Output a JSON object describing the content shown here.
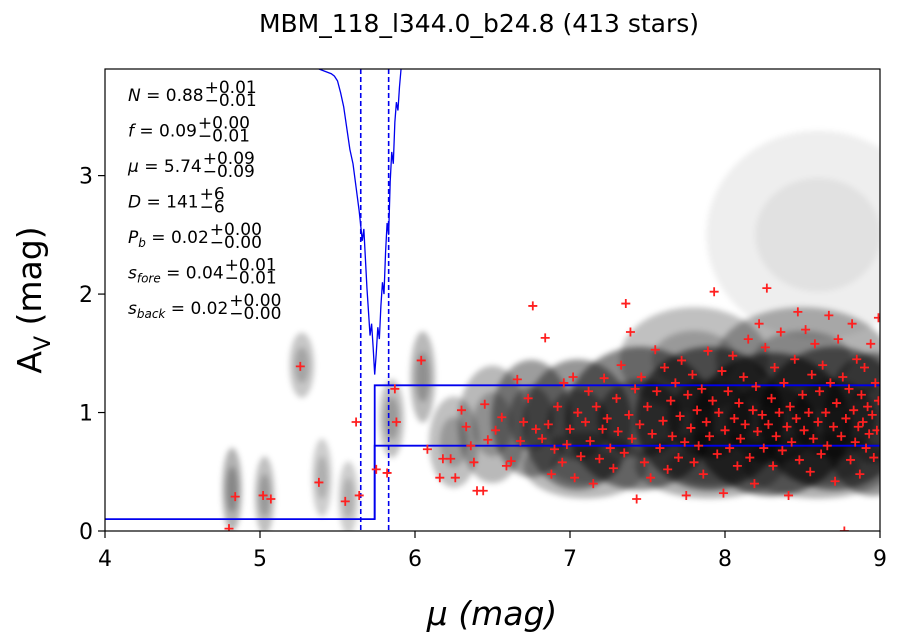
{
  "chart_data": {
    "type": "scatter",
    "title": "MBM_118_l344.0_b24.8 (413 stars)",
    "xlabel": "μ (mag)",
    "ylabel": "A",
    "ylabel_sub": "V",
    "ylabel_unit": " (mag)",
    "xlim": [
      4,
      9
    ],
    "ylim": [
      0,
      3.9
    ],
    "xticks": [
      "4",
      "5",
      "6",
      "7",
      "8",
      "9"
    ],
    "yticks": [
      "0",
      "1",
      "2",
      "3"
    ],
    "annotations": [
      {
        "sym": "N",
        "sub": "",
        "value": " = 0.88",
        "plus": "+0.01",
        "minus": "−0.01"
      },
      {
        "sym": "f",
        "sub": "",
        "value": " = 0.09",
        "plus": "+0.00",
        "minus": "−0.01"
      },
      {
        "sym": "μ",
        "sub": "",
        "value": " = 5.74",
        "plus": "+0.09",
        "minus": "−0.09"
      },
      {
        "sym": "D",
        "sub": "",
        "value": " = 141",
        "plus": "+6",
        "minus": "−6"
      },
      {
        "sym": "P",
        "sub": "b",
        "value": " = 0.02",
        "plus": "+0.00",
        "minus": "−0.00"
      },
      {
        "sym": "s",
        "sub": "fore",
        "value": " = 0.04",
        "plus": "+0.01",
        "minus": "−0.01"
      },
      {
        "sym": "s",
        "sub": "back",
        "value": " = 0.02",
        "plus": "+0.00",
        "minus": "−0.00"
      }
    ],
    "colors": {
      "points": "#ff2020",
      "model": "#0000ee",
      "density": "#000000"
    },
    "model_step": {
      "x_break": 5.74,
      "fore_level": 0.1,
      "back_upper": 1.23,
      "back_lower": 0.72
    },
    "distance_lines": [
      5.65,
      5.83
    ],
    "likelihood_curve": [
      [
        5.38,
        3.9
      ],
      [
        5.42,
        3.88
      ],
      [
        5.46,
        3.86
      ],
      [
        5.48,
        3.84
      ],
      [
        5.5,
        3.8
      ],
      [
        5.52,
        3.7
      ],
      [
        5.54,
        3.58
      ],
      [
        5.56,
        3.4
      ],
      [
        5.58,
        3.22
      ],
      [
        5.6,
        3.1
      ],
      [
        5.62,
        2.9
      ],
      [
        5.64,
        2.7
      ],
      [
        5.66,
        2.45
      ],
      [
        5.67,
        2.55
      ],
      [
        5.68,
        2.3
      ],
      [
        5.69,
        2.05
      ],
      [
        5.7,
        1.85
      ],
      [
        5.71,
        1.65
      ],
      [
        5.72,
        1.75
      ],
      [
        5.73,
        1.55
      ],
      [
        5.74,
        1.32
      ],
      [
        5.75,
        1.5
      ],
      [
        5.76,
        1.72
      ],
      [
        5.77,
        1.62
      ],
      [
        5.78,
        1.9
      ],
      [
        5.79,
        2.1
      ],
      [
        5.8,
        2.0
      ],
      [
        5.81,
        2.35
      ],
      [
        5.82,
        2.6
      ],
      [
        5.83,
        2.5
      ],
      [
        5.84,
        2.95
      ],
      [
        5.85,
        3.2
      ],
      [
        5.86,
        3.1
      ],
      [
        5.87,
        3.45
      ],
      [
        5.88,
        3.62
      ],
      [
        5.89,
        3.55
      ],
      [
        5.9,
        3.75
      ],
      [
        5.91,
        3.9
      ]
    ],
    "density_blobs": [
      [
        4.82,
        0.35,
        0.04,
        0.32,
        0.55
      ],
      [
        5.03,
        0.3,
        0.04,
        0.3,
        0.45
      ],
      [
        5.27,
        1.4,
        0.05,
        0.25,
        0.4
      ],
      [
        5.4,
        0.45,
        0.04,
        0.3,
        0.35
      ],
      [
        5.57,
        0.28,
        0.04,
        0.28,
        0.35
      ],
      [
        5.85,
        0.95,
        0.05,
        0.3,
        0.45
      ],
      [
        6.05,
        1.3,
        0.05,
        0.35,
        0.5
      ],
      [
        6.25,
        0.75,
        0.1,
        0.35,
        0.45
      ],
      [
        6.5,
        0.9,
        0.14,
        0.45,
        0.5
      ],
      [
        6.75,
        0.95,
        0.16,
        0.45,
        0.7
      ],
      [
        7.05,
        0.9,
        0.22,
        0.5,
        0.75
      ],
      [
        7.45,
        0.95,
        0.3,
        0.55,
        0.85
      ],
      [
        7.9,
        0.95,
        0.3,
        0.55,
        0.95
      ],
      [
        8.3,
        0.9,
        0.32,
        0.55,
        1.0
      ],
      [
        8.7,
        0.95,
        0.3,
        0.55,
        0.9
      ],
      [
        8.95,
        0.9,
        0.2,
        0.55,
        0.75
      ],
      [
        8.5,
        1.45,
        0.35,
        0.4,
        0.55
      ],
      [
        7.8,
        1.45,
        0.3,
        0.4,
        0.45
      ],
      [
        7.1,
        0.55,
        0.25,
        0.25,
        0.5
      ],
      [
        7.9,
        0.55,
        0.3,
        0.25,
        0.55
      ],
      [
        8.6,
        0.55,
        0.3,
        0.25,
        0.55
      ],
      [
        8.6,
        2.5,
        0.45,
        0.8,
        0.12
      ]
    ],
    "points": [
      [
        4.8,
        0.02
      ],
      [
        4.84,
        0.29
      ],
      [
        5.02,
        0.3
      ],
      [
        5.07,
        0.27
      ],
      [
        5.26,
        1.39
      ],
      [
        5.38,
        0.41
      ],
      [
        5.55,
        0.25
      ],
      [
        5.62,
        0.92
      ],
      [
        5.64,
        0.3
      ],
      [
        5.75,
        0.52
      ],
      [
        5.82,
        0.49
      ],
      [
        5.87,
        1.2
      ],
      [
        5.88,
        0.92
      ],
      [
        6.04,
        1.44
      ],
      [
        6.08,
        0.69
      ],
      [
        6.16,
        0.45
      ],
      [
        6.18,
        0.61
      ],
      [
        6.23,
        0.61
      ],
      [
        6.26,
        0.45
      ],
      [
        6.3,
        1.02
      ],
      [
        6.33,
        0.88
      ],
      [
        6.36,
        0.72
      ],
      [
        6.38,
        0.58
      ],
      [
        6.4,
        0.34
      ],
      [
        6.44,
        0.34
      ],
      [
        6.45,
        1.07
      ],
      [
        6.47,
        0.77
      ],
      [
        6.52,
        0.85
      ],
      [
        6.56,
        0.96
      ],
      [
        6.59,
        0.55
      ],
      [
        6.62,
        0.59
      ],
      [
        6.66,
        1.28
      ],
      [
        6.68,
        0.76
      ],
      [
        6.7,
        0.92
      ],
      [
        6.73,
        1.12
      ],
      [
        6.76,
        1.9
      ],
      [
        6.78,
        0.86
      ],
      [
        6.82,
        0.78
      ],
      [
        6.84,
        1.63
      ],
      [
        6.86,
        0.9
      ],
      [
        6.88,
        0.48
      ],
      [
        6.9,
        0.69
      ],
      [
        6.92,
        1.05
      ],
      [
        6.95,
        0.58
      ],
      [
        6.96,
        1.25
      ],
      [
        6.98,
        0.73
      ],
      [
        7.0,
        0.86
      ],
      [
        7.02,
        1.3
      ],
      [
        7.03,
        0.45
      ],
      [
        7.05,
        1.0
      ],
      [
        7.07,
        0.63
      ],
      [
        7.1,
        0.92
      ],
      [
        7.12,
        1.18
      ],
      [
        7.13,
        0.76
      ],
      [
        7.15,
        0.4
      ],
      [
        7.17,
        1.05
      ],
      [
        7.19,
        0.61
      ],
      [
        7.21,
        0.86
      ],
      [
        7.22,
        1.29
      ],
      [
        7.24,
        0.95
      ],
      [
        7.26,
        0.7
      ],
      [
        7.28,
        0.53
      ],
      [
        7.3,
        1.12
      ],
      [
        7.31,
        0.84
      ],
      [
        7.33,
        1.4
      ],
      [
        7.35,
        0.66
      ],
      [
        7.36,
        1.92
      ],
      [
        7.38,
        0.98
      ],
      [
        7.39,
        1.68
      ],
      [
        7.4,
        0.78
      ],
      [
        7.42,
        1.2
      ],
      [
        7.43,
        0.27
      ],
      [
        7.45,
        0.9
      ],
      [
        7.46,
        1.3
      ],
      [
        7.48,
        0.58
      ],
      [
        7.5,
        1.05
      ],
      [
        7.52,
        0.45
      ],
      [
        7.53,
        0.82
      ],
      [
        7.55,
        1.53
      ],
      [
        7.56,
        1.18
      ],
      [
        7.58,
        0.7
      ],
      [
        7.6,
        0.93
      ],
      [
        7.61,
        1.38
      ],
      [
        7.63,
        0.52
      ],
      [
        7.65,
        1.1
      ],
      [
        7.66,
        0.8
      ],
      [
        7.68,
        1.25
      ],
      [
        7.7,
        0.62
      ],
      [
        7.71,
        0.97
      ],
      [
        7.72,
        1.44
      ],
      [
        7.74,
        0.75
      ],
      [
        7.75,
        0.3
      ],
      [
        7.76,
        1.15
      ],
      [
        7.78,
        0.87
      ],
      [
        7.79,
        1.32
      ],
      [
        7.8,
        0.58
      ],
      [
        7.82,
        1.02
      ],
      [
        7.83,
        0.72
      ],
      [
        7.85,
        1.2
      ],
      [
        7.86,
        0.48
      ],
      [
        7.88,
        0.92
      ],
      [
        7.89,
        1.52
      ],
      [
        7.9,
        0.8
      ],
      [
        7.92,
        1.1
      ],
      [
        7.93,
        2.02
      ],
      [
        7.95,
        0.65
      ],
      [
        7.96,
        1.0
      ],
      [
        7.98,
        1.35
      ],
      [
        7.99,
        0.32
      ],
      [
        8.0,
        0.85
      ],
      [
        8.02,
        1.18
      ],
      [
        8.03,
        0.7
      ],
      [
        8.05,
        1.48
      ],
      [
        8.06,
        0.95
      ],
      [
        8.08,
        0.55
      ],
      [
        8.09,
        1.08
      ],
      [
        8.1,
        0.78
      ],
      [
        8.12,
        1.3
      ],
      [
        8.13,
        0.9
      ],
      [
        8.15,
        1.62
      ],
      [
        8.16,
        0.62
      ],
      [
        8.18,
        1.02
      ],
      [
        8.19,
        0.4
      ],
      [
        8.2,
        1.22
      ],
      [
        8.21,
        0.84
      ],
      [
        8.22,
        1.75
      ],
      [
        8.24,
        0.98
      ],
      [
        8.25,
        0.7
      ],
      [
        8.26,
        1.55
      ],
      [
        8.27,
        2.05
      ],
      [
        8.28,
        0.9
      ],
      [
        8.3,
        1.12
      ],
      [
        8.31,
        0.55
      ],
      [
        8.32,
        1.38
      ],
      [
        8.33,
        0.8
      ],
      [
        8.35,
        1.0
      ],
      [
        8.36,
        1.68
      ],
      [
        8.37,
        0.68
      ],
      [
        8.38,
        1.25
      ],
      [
        8.4,
        0.88
      ],
      [
        8.41,
        0.3
      ],
      [
        8.42,
        1.05
      ],
      [
        8.43,
        0.75
      ],
      [
        8.45,
        1.45
      ],
      [
        8.46,
        0.95
      ],
      [
        8.47,
        1.85
      ],
      [
        8.48,
        0.6
      ],
      [
        8.5,
        1.15
      ],
      [
        8.51,
        0.85
      ],
      [
        8.52,
        1.7
      ],
      [
        8.54,
        1.0
      ],
      [
        8.55,
        0.5
      ],
      [
        8.56,
        1.32
      ],
      [
        8.57,
        0.78
      ],
      [
        8.58,
        1.58
      ],
      [
        8.6,
        0.92
      ],
      [
        8.61,
        1.18
      ],
      [
        8.62,
        0.65
      ],
      [
        8.63,
        1.4
      ],
      [
        8.65,
        1.0
      ],
      [
        8.66,
        0.72
      ],
      [
        8.67,
        1.82
      ],
      [
        8.68,
        1.25
      ],
      [
        8.7,
        0.88
      ],
      [
        8.71,
        0.42
      ],
      [
        8.72,
        1.08
      ],
      [
        8.73,
        1.62
      ],
      [
        8.75,
        0.8
      ],
      [
        8.76,
        1.3
      ],
      [
        8.77,
        0.0
      ],
      [
        8.78,
        0.95
      ],
      [
        8.8,
        1.2
      ],
      [
        8.81,
        0.6
      ],
      [
        8.82,
        1.75
      ],
      [
        8.83,
        1.02
      ],
      [
        8.84,
        0.75
      ],
      [
        8.85,
        1.45
      ],
      [
        8.86,
        0.88
      ],
      [
        8.87,
        0.48
      ],
      [
        8.88,
        1.15
      ],
      [
        8.89,
        0.92
      ],
      [
        8.9,
        1.38
      ],
      [
        8.91,
        0.7
      ],
      [
        8.92,
        1.05
      ],
      [
        8.93,
        0.82
      ],
      [
        8.94,
        1.58
      ],
      [
        8.95,
        0.98
      ],
      [
        8.96,
        0.62
      ],
      [
        8.97,
        1.25
      ],
      [
        8.98,
        0.85
      ],
      [
        8.99,
        1.8
      ],
      [
        8.99,
        1.1
      ]
    ]
  }
}
